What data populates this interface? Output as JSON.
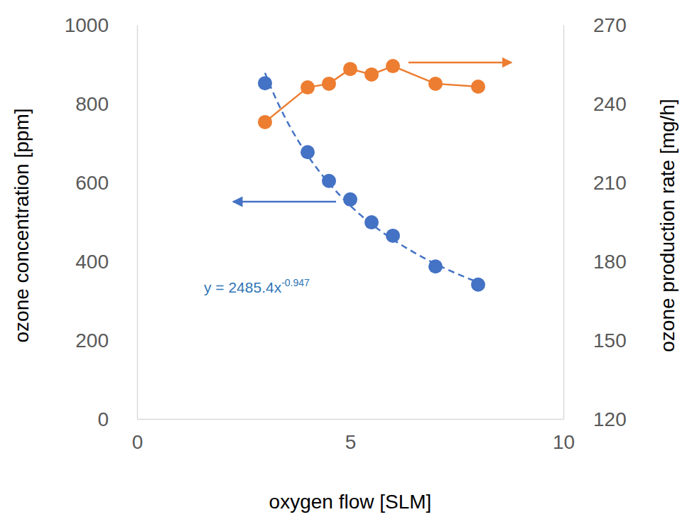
{
  "chart_data": {
    "type": "scatter",
    "x_label": "oxygen flow [SLM]",
    "y_label": "ozone concentration [ppm]",
    "y2_label": "ozone production rate [mg/h]",
    "x": [
      3,
      4,
      4.5,
      5,
      5.5,
      6,
      7,
      8
    ],
    "series": [
      {
        "name": "ozone concentration",
        "color": "#4472c4",
        "marker": "circle",
        "line_style": "none",
        "values": [
          852,
          677,
          604,
          557,
          499,
          465,
          387,
          341
        ]
      },
      {
        "name": "ozone production rate",
        "color": "#ed7d31",
        "marker": "circle",
        "line_style": "solid",
        "axis": "y2",
        "values": [
          233,
          246.2,
          247.6,
          253.2,
          251.1,
          254.3,
          247.6,
          246.5
        ]
      }
    ],
    "trendline": {
      "type": "power",
      "coefficient": 2485.4,
      "exponent": -0.947,
      "label": "y = 2485.4x",
      "label_superscript": "-0.947",
      "color": "#4472c4",
      "line_style": "dashed"
    },
    "xlim": [
      0,
      10
    ],
    "xticks": [
      0,
      5,
      10
    ],
    "ylim": [
      0,
      1000
    ],
    "yticks": [
      0,
      200,
      400,
      600,
      800,
      1000
    ],
    "y2lim": [
      120,
      270
    ],
    "y2ticks": [
      120,
      150,
      180,
      210,
      240,
      270
    ],
    "grid": false
  }
}
